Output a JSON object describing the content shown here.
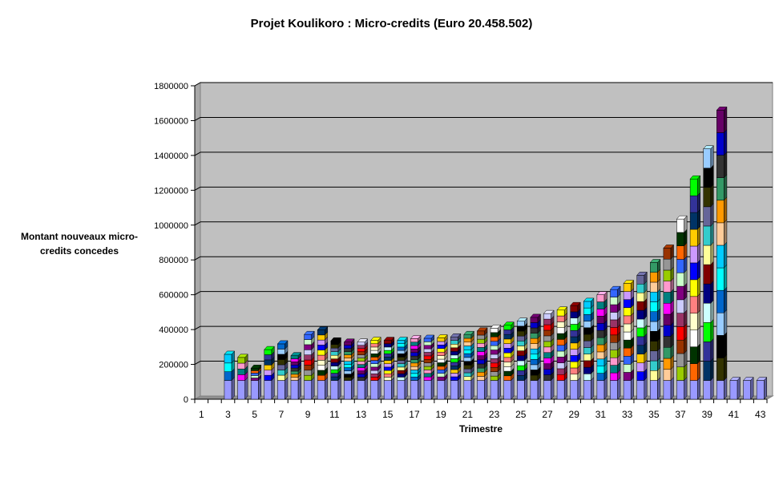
{
  "chart_data": {
    "type": "bar",
    "stacked": true,
    "three_d": true,
    "title": "Projet Koulikoro : Micro-credits (Euro 20.458.502)",
    "xlabel": "Trimestre",
    "ylabel": "Montant nouveaux micro-credits concedes",
    "ylim": [
      0,
      1800000
    ],
    "y_ticks": [
      "0",
      "200000",
      "400000",
      "600000",
      "800000",
      "1000000",
      "1200000",
      "1400000",
      "1600000",
      "1800000"
    ],
    "x_ticks": [
      "1",
      "3",
      "5",
      "7",
      "9",
      "11",
      "13",
      "15",
      "17",
      "19",
      "21",
      "23",
      "25",
      "27",
      "29",
      "31",
      "33",
      "35",
      "37",
      "39",
      "41",
      "43"
    ],
    "categories": [
      "1",
      "2",
      "3",
      "4",
      "5",
      "6",
      "7",
      "8",
      "9",
      "10",
      "11",
      "12",
      "13",
      "14",
      "15",
      "16",
      "17",
      "18",
      "19",
      "20",
      "21",
      "22",
      "23",
      "24",
      "25",
      "26",
      "27",
      "28",
      "29",
      "30",
      "31",
      "32",
      "33",
      "34",
      "35",
      "36",
      "37",
      "38",
      "39",
      "40",
      "41",
      "42",
      "43"
    ],
    "totals": [
      0,
      0,
      258000,
      240000,
      178000,
      285000,
      318000,
      250000,
      372000,
      398000,
      335000,
      328000,
      328000,
      338000,
      338000,
      338000,
      348000,
      350000,
      352000,
      358000,
      372000,
      392000,
      408000,
      425000,
      448000,
      470000,
      492000,
      512000,
      538000,
      562000,
      600000,
      630000,
      665000,
      712000,
      785000,
      868000,
      1035000,
      1265000,
      1438000,
      1660000,
      108000,
      108000,
      108000
    ],
    "gridlines": true,
    "plot_background": "#c0c0c0",
    "series_colors": [
      "#9999ff",
      "#ffffcc",
      "#99ccff",
      "#993366",
      "#ccffff",
      "#660066",
      "#ff8080",
      "#0066cc",
      "#ccccff",
      "#000080",
      "#ff00ff",
      "#ffff00",
      "#00ffff",
      "#800080",
      "#800000",
      "#008080",
      "#0000ff",
      "#00ccff",
      "#ccffcc",
      "#ffff99",
      "#ff99cc",
      "#cc99ff",
      "#ffcc99",
      "#3366ff",
      "#33cccc",
      "#99cc00",
      "#ffcc00",
      "#ff9900",
      "#ff6600",
      "#666699",
      "#969696",
      "#003366",
      "#339966",
      "#003300",
      "#333300",
      "#993300",
      "#333399",
      "#333333",
      "#ffffff",
      "#000000",
      "#ff0000",
      "#00ff00",
      "#0000cc"
    ],
    "legend": "none"
  }
}
